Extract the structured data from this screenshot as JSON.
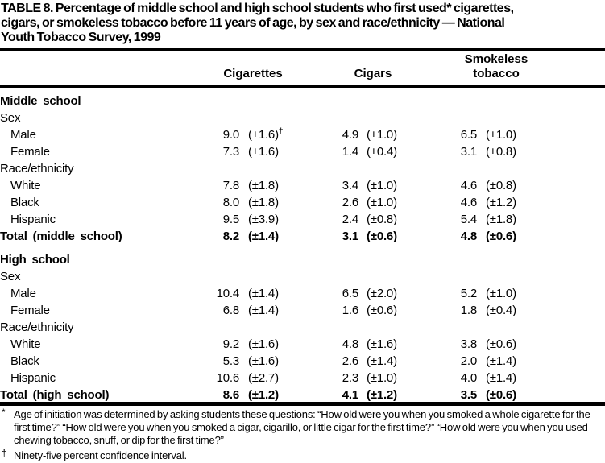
{
  "page": {
    "background": "#ffffff",
    "text_color": "#000000",
    "rule_color": "#000000"
  },
  "table": {
    "title_line1": "TABLE 8. Percentage of middle school and high school students who first used* cigarettes,",
    "title_line2": "cigars, or smokeless tobacco before 11 years of age, by sex and race/ethnicity — National",
    "title_line3": "Youth Tobacco Survey, 1999",
    "col_headers": {
      "cigarettes": "Cigarettes",
      "cigars": "Cigars",
      "smokeless": "Smokeless tobacco"
    },
    "rows": [
      {
        "label": "Middle school"
      },
      {
        "label": "Sex"
      },
      {
        "label": "Male",
        "v1": "9.0",
        "ci1": "(±1.6)",
        "ci1_sup": "†",
        "v2": "4.9",
        "ci2": "(±1.0)",
        "v3": "6.5",
        "ci3": "(±1.0)"
      },
      {
        "label": "Female",
        "v1": "7.3",
        "ci1": "(±1.6)",
        "v2": "1.4",
        "ci2": "(±0.4)",
        "v3": "3.1",
        "ci3": "(±0.8)"
      },
      {
        "label": "Race/ethnicity"
      },
      {
        "label": "White",
        "v1": "7.8",
        "ci1": "(±1.8)",
        "v2": "3.4",
        "ci2": "(±1.0)",
        "v3": "4.6",
        "ci3": "(±0.8)"
      },
      {
        "label": "Black",
        "v1": "8.0",
        "ci1": "(±1.8)",
        "v2": "2.6",
        "ci2": "(±1.0)",
        "v3": "4.6",
        "ci3": "(±1.2)"
      },
      {
        "label": "Hispanic",
        "v1": "9.5",
        "ci1": "(±3.9)",
        "v2": "2.4",
        "ci2": "(±0.8)",
        "v3": "5.4",
        "ci3": "(±1.8)"
      },
      {
        "label": "Total (middle school)",
        "v1": "8.2",
        "ci1": "(±1.4)",
        "v2": "3.1",
        "ci2": "(±0.6)",
        "v3": "4.8",
        "ci3": "(±0.6)"
      },
      {
        "label": "High school"
      },
      {
        "label": "Sex"
      },
      {
        "label": "Male",
        "v1": "10.4",
        "ci1": "(±1.4)",
        "v2": "6.5",
        "ci2": "(±2.0)",
        "v3": "5.2",
        "ci3": "(±1.0)"
      },
      {
        "label": "Female",
        "v1": "6.8",
        "ci1": "(±1.4)",
        "v2": "1.6",
        "ci2": "(±0.6)",
        "v3": "1.8",
        "ci3": "(±0.4)"
      },
      {
        "label": "Race/ethnicity"
      },
      {
        "label": "White",
        "v1": "9.2",
        "ci1": "(±1.6)",
        "v2": "4.8",
        "ci2": "(±1.6)",
        "v3": "3.8",
        "ci3": "(±0.6)"
      },
      {
        "label": "Black",
        "v1": "5.3",
        "ci1": "(±1.6)",
        "v2": "2.6",
        "ci2": "(±1.4)",
        "v3": "2.0",
        "ci3": "(±1.4)"
      },
      {
        "label": "Hispanic",
        "v1": "10.6",
        "ci1": "(±2.7)",
        "v2": "2.3",
        "ci2": "(±1.0)",
        "v3": "4.0",
        "ci3": "(±1.4)"
      },
      {
        "label": "Total (high school)",
        "v1": "8.6",
        "ci1": "(±1.2)",
        "v2": "4.1",
        "ci2": "(±1.2)",
        "v3": "3.5",
        "ci3": "(±0.6)"
      }
    ],
    "footnotes": [
      {
        "marker": "*",
        "text": "Age of initiation was determined by asking students these questions: “How old were you when you smoked a whole cigarette for the first time?” “How old were you when you smoked a cigar, cigarillo, or little cigar for the first time?” “How old were you when you used chewing tobacco, snuff, or dip for the first time?”"
      },
      {
        "marker": "†",
        "text": "Ninety-five percent confidence interval."
      }
    ]
  }
}
